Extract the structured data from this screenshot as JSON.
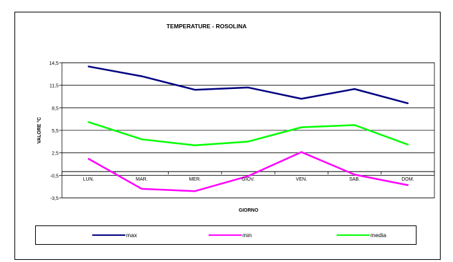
{
  "chart_data": {
    "type": "line",
    "title": "TEMPERATURE - ROSOLINA",
    "xlabel": "GIORNO",
    "ylabel": "VALORE °C",
    "categories": [
      "LUN.",
      "MAR.",
      "MER.",
      "GIOV.",
      "VEN.",
      "SAB.",
      "DOM."
    ],
    "yticks": [
      "14,5",
      "11,5",
      "8,5",
      "5,5",
      "2,5",
      "-0,5",
      "-3,5"
    ],
    "ylim": [
      -3.5,
      14.5
    ],
    "grid": true,
    "legend_position": "bottom",
    "series": [
      {
        "name": "max",
        "color": "#000080",
        "values": [
          14.0,
          12.7,
          10.9,
          11.2,
          9.7,
          11.0,
          9.1
        ]
      },
      {
        "name": "min",
        "color": "#FF00FF",
        "values": [
          1.7,
          -2.3,
          -2.6,
          -0.6,
          2.6,
          -0.4,
          -1.8
        ]
      },
      {
        "name": "media",
        "color": "#00FF00",
        "values": [
          6.6,
          4.3,
          3.5,
          4.0,
          5.9,
          6.2,
          3.6
        ]
      }
    ]
  }
}
